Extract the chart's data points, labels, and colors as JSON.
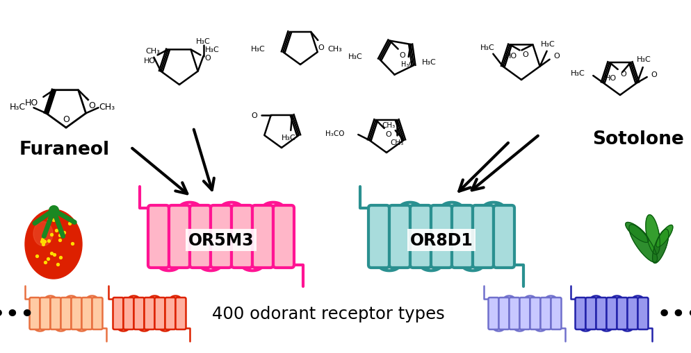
{
  "or5m3_fill": "#FFB6C8",
  "or5m3_line": "#FF1493",
  "or8d1_fill": "#A8DCDC",
  "or8d1_line": "#2A9090",
  "orange_fill": "#FFCBA4",
  "orange_line": "#E87040",
  "red_fill": "#FFB0A0",
  "red_line": "#DD2200",
  "lavender_fill": "#C8C8FF",
  "lavender_line": "#7070CC",
  "blue_fill": "#9898EE",
  "blue_line": "#2222AA",
  "text_400": "400 odorant receptor types",
  "label_or5m3": "OR5M3",
  "label_or8d1": "OR8D1",
  "label_furaneol": "Furaneol",
  "label_sotolone": "Sotolone",
  "bg": "#FFFFFF"
}
